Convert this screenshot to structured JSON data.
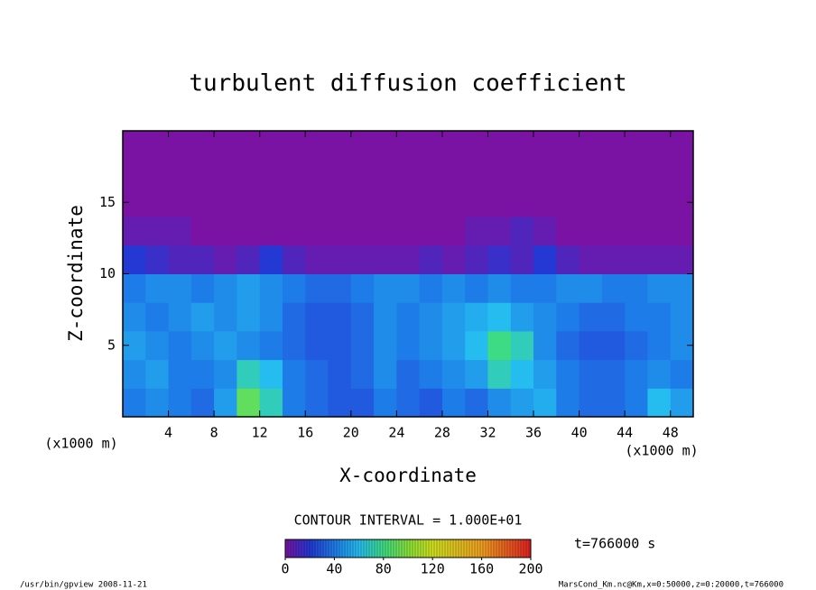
{
  "chart_data": {
    "type": "heatmap",
    "title": "turbulent diffusion coefficient",
    "x_label": "X-coordinate",
    "y_label": "Z-coordinate",
    "x_unit": "(x1000 m)",
    "y_unit": "(x1000 m)",
    "xlim": [
      0,
      50
    ],
    "ylim": [
      0,
      20
    ],
    "xticks": [
      4,
      8,
      12,
      16,
      20,
      24,
      28,
      32,
      36,
      40,
      44,
      48
    ],
    "yticks": [
      5,
      10,
      15
    ],
    "x": [
      1,
      3,
      5,
      7,
      9,
      11,
      13,
      15,
      17,
      19,
      21,
      23,
      25,
      27,
      29,
      31,
      33,
      35,
      37,
      39,
      41,
      43,
      45,
      47,
      49
    ],
    "y": [
      1,
      3,
      5,
      7,
      9,
      11,
      13,
      15,
      17,
      19
    ],
    "z": [
      [
        40,
        45,
        40,
        35,
        50,
        90,
        70,
        40,
        35,
        30,
        30,
        40,
        35,
        30,
        40,
        35,
        45,
        50,
        55,
        40,
        35,
        35,
        40,
        60,
        50
      ],
      [
        45,
        50,
        40,
        40,
        45,
        70,
        60,
        40,
        35,
        30,
        35,
        45,
        35,
        40,
        45,
        50,
        70,
        60,
        50,
        40,
        35,
        35,
        40,
        45,
        40
      ],
      [
        50,
        45,
        40,
        45,
        50,
        45,
        40,
        35,
        30,
        30,
        35,
        45,
        40,
        45,
        50,
        60,
        80,
        70,
        45,
        35,
        30,
        30,
        35,
        40,
        45
      ],
      [
        45,
        40,
        45,
        50,
        45,
        50,
        45,
        35,
        30,
        30,
        35,
        45,
        40,
        45,
        50,
        55,
        60,
        50,
        45,
        40,
        35,
        35,
        40,
        40,
        45
      ],
      [
        40,
        45,
        45,
        40,
        45,
        50,
        45,
        40,
        35,
        35,
        40,
        45,
        45,
        40,
        45,
        40,
        45,
        40,
        40,
        45,
        45,
        40,
        40,
        45,
        45
      ],
      [
        20,
        15,
        10,
        10,
        5,
        10,
        20,
        10,
        5,
        5,
        5,
        5,
        5,
        10,
        5,
        10,
        15,
        10,
        20,
        10,
        5,
        5,
        5,
        5,
        5
      ],
      [
        5,
        5,
        5,
        0,
        0,
        0,
        0,
        0,
        0,
        0,
        0,
        0,
        0,
        0,
        0,
        5,
        5,
        10,
        5,
        0,
        0,
        0,
        0,
        0,
        0
      ],
      [
        0,
        0,
        0,
        0,
        0,
        0,
        0,
        0,
        0,
        0,
        0,
        0,
        0,
        0,
        0,
        0,
        0,
        0,
        0,
        0,
        0,
        0,
        0,
        0,
        0
      ],
      [
        0,
        0,
        0,
        0,
        0,
        0,
        0,
        0,
        0,
        0,
        0,
        0,
        0,
        0,
        0,
        0,
        0,
        0,
        0,
        0,
        0,
        0,
        0,
        0,
        0
      ],
      [
        0,
        0,
        0,
        0,
        0,
        0,
        0,
        0,
        0,
        0,
        0,
        0,
        0,
        0,
        0,
        0,
        0,
        0,
        0,
        0,
        0,
        0,
        0,
        0,
        0
      ]
    ],
    "colormap": [
      {
        "value": 0,
        "color": "#7a12a4"
      },
      {
        "value": 20,
        "color": "#2438d4"
      },
      {
        "value": 40,
        "color": "#1e7ce8"
      },
      {
        "value": 60,
        "color": "#25bdf0"
      },
      {
        "value": 80,
        "color": "#3ddc84"
      },
      {
        "value": 100,
        "color": "#86e03a"
      },
      {
        "value": 120,
        "color": "#d0e020"
      },
      {
        "value": 160,
        "color": "#f0a020"
      },
      {
        "value": 200,
        "color": "#e02020"
      }
    ],
    "colorbar_lim": [
      0,
      200
    ],
    "colorbar_ticks": [
      0,
      40,
      80,
      120,
      160,
      200
    ],
    "contour_note": "CONTOUR INTERVAL = 1.000E+01",
    "time_note": "t=766000 s",
    "footer_left": "/usr/bin/gpview  2008-11-21",
    "footer_right": "MarsCond_Km.nc@Km,x=0:50000,z=0:20000,t=766000"
  }
}
